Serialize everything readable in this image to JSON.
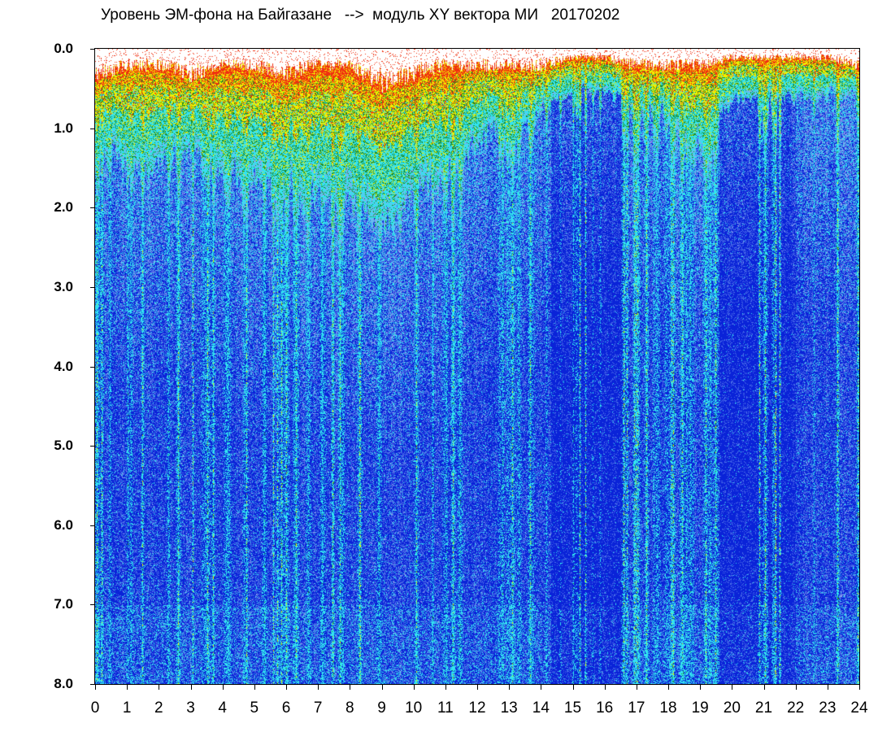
{
  "chart_data": {
    "type": "heatmap",
    "title": "Уровень ЭМ-фона на Байгазане   -->  модуль XY вектора МИ   20170202",
    "xlabel": "",
    "ylabel": "",
    "xlim": [
      0,
      24
    ],
    "ylim": [
      0.0,
      8.0
    ],
    "y_inverted": true,
    "x_ticks": [
      "0",
      "1",
      "2",
      "3",
      "4",
      "5",
      "6",
      "7",
      "8",
      "9",
      "10",
      "11",
      "12",
      "13",
      "14",
      "15",
      "16",
      "17",
      "18",
      "19",
      "20",
      "21",
      "22",
      "23",
      "24"
    ],
    "y_ticks": [
      "0.0",
      "1.0",
      "2.0",
      "3.0",
      "4.0",
      "5.0",
      "6.0",
      "7.0",
      "8.0"
    ],
    "grid": false,
    "colormap": [
      "#0a23d8",
      "#4b6ee8",
      "#8fa0ef",
      "#33e3f0",
      "#1b8d2a",
      "#f0f000",
      "#f03010"
    ],
    "intensity_profile": {
      "hours": [
        0,
        1,
        2,
        3,
        4,
        5,
        6,
        7,
        8,
        9,
        10,
        11,
        12,
        13,
        14,
        15,
        16,
        17,
        18,
        19,
        20,
        21,
        22,
        23,
        24
      ],
      "active_band_top_depth": [
        0.3,
        0.2,
        0.2,
        0.3,
        0.2,
        0.2,
        0.3,
        0.2,
        0.2,
        0.4,
        0.3,
        0.2,
        0.2,
        0.2,
        0.2,
        0.1,
        0.1,
        0.2,
        0.2,
        0.2,
        0.1,
        0.1,
        0.1,
        0.1,
        0.2
      ],
      "active_band_bottom_depth": [
        1.2,
        1.5,
        1.5,
        1.2,
        1.6,
        1.6,
        1.8,
        1.8,
        1.8,
        2.2,
        1.8,
        1.6,
        1.2,
        1.0,
        0.8,
        0.5,
        0.5,
        0.8,
        0.8,
        1.2,
        0.6,
        0.6,
        0.6,
        0.6,
        0.5
      ]
    }
  }
}
